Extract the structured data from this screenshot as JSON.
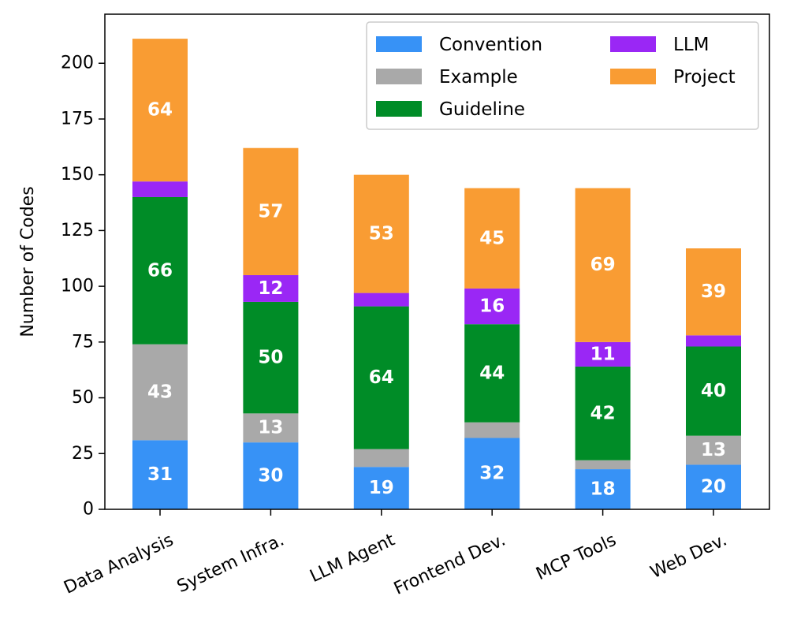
{
  "chart_data": {
    "type": "bar",
    "stacked": true,
    "title": "",
    "xlabel": "",
    "ylabel": "Number of Codes",
    "ylim": [
      0,
      222
    ],
    "yticks": [
      0,
      25,
      50,
      75,
      100,
      125,
      150,
      175,
      200
    ],
    "categories": [
      "Data Analysis",
      "System Infra.",
      "LLM Agent",
      "Frontend Dev.",
      "MCP Tools",
      "Web Dev."
    ],
    "series": [
      {
        "name": "Convention",
        "color": "#3792F6",
        "values": [
          31,
          30,
          19,
          32,
          18,
          20
        ]
      },
      {
        "name": "Example",
        "color": "#A9A9A9",
        "values": [
          43,
          13,
          8,
          7,
          4,
          13
        ]
      },
      {
        "name": "Guideline",
        "color": "#008C27",
        "values": [
          66,
          50,
          64,
          44,
          42,
          40
        ]
      },
      {
        "name": "LLM",
        "color": "#9A27F5",
        "values": [
          7,
          12,
          6,
          16,
          11,
          5
        ]
      },
      {
        "name": "Project",
        "color": "#F99C33",
        "values": [
          64,
          57,
          53,
          45,
          69,
          39
        ]
      }
    ],
    "data_labels": [
      [
        "31",
        "30",
        "19",
        "32",
        "18",
        "20"
      ],
      [
        "43",
        "13",
        "",
        "",
        "",
        "13"
      ],
      [
        "66",
        "50",
        "64",
        "44",
        "42",
        "40"
      ],
      [
        "",
        "12",
        "",
        "16",
        "11",
        ""
      ],
      [
        "64",
        "57",
        "53",
        "45",
        "69",
        "39"
      ]
    ],
    "legend": {
      "position": "top-right",
      "columns": 2
    }
  }
}
